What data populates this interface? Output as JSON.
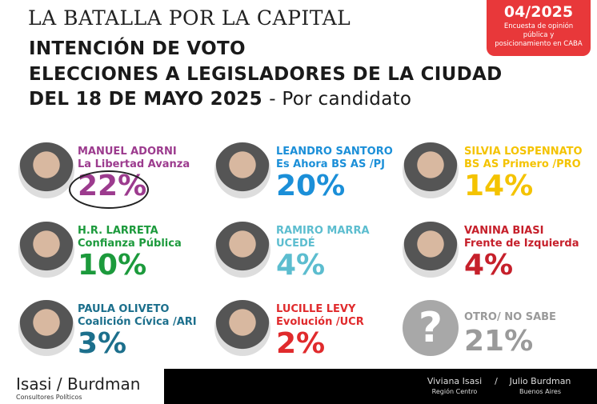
{
  "header": {
    "kicker": "LA BATALLA POR LA CAPITAL",
    "line1": "INTENCIÓN DE VOTO",
    "line2": "ELECCIONES A LEGISLADORES DE LA CIUDAD",
    "line3": "DEL 18 DE MAYO 2025",
    "line3_sub": "- Por candidato"
  },
  "badge": {
    "date": "04/2025",
    "text": "Encuesta de opinión pública y posicionamiento en CABA",
    "color": "#e8383a"
  },
  "candidates": [
    {
      "name": "MANUEL ADORNI",
      "party": "La Libertad Avanza",
      "pct": "22%",
      "value": 22,
      "color": "#9c3b8e"
    },
    {
      "name": "LEANDRO SANTORO",
      "party": "Es Ahora BS AS /PJ",
      "pct": "20%",
      "value": 20,
      "color": "#1b8fd8"
    },
    {
      "name": "SILVIA LOSPENNATO",
      "party": "BS AS Primero /PRO",
      "pct": "14%",
      "value": 14,
      "color": "#f4c300"
    },
    {
      "name": "H.R. LARRETA",
      "party": "Confianza Pública",
      "pct": "10%",
      "value": 10,
      "color": "#1c9a3c"
    },
    {
      "name": "RAMIRO MARRA",
      "party": "UCEDÉ",
      "pct": "4%",
      "value": 4,
      "color": "#5cbdcf"
    },
    {
      "name": "VANINA BIASI",
      "party": "Frente de Izquierda",
      "pct": "4%",
      "value": 4,
      "color": "#c6202b"
    },
    {
      "name": "PAULA OLIVETO",
      "party": "Coalición Cívica /ARI",
      "pct": "3%",
      "value": 3,
      "color": "#1c6f8c"
    },
    {
      "name": "LUCILLE LEVY",
      "party": "Evolución /UCR",
      "pct": "2%",
      "value": 2,
      "color": "#e02a2c"
    },
    {
      "name": "OTRO/ NO SABE",
      "party": "",
      "pct": "21%",
      "value": 21,
      "color": "#9a9a9a"
    }
  ],
  "other_icon": "?",
  "footer": {
    "brand": "Isasi / Burdman",
    "brand_sub": "Consultores Políticos",
    "p1": "Viviana Isasi",
    "p1_sub": "Región Centro",
    "sep": "/",
    "p2": "Julio Burdman",
    "p2_sub": "Buenos Aires"
  }
}
